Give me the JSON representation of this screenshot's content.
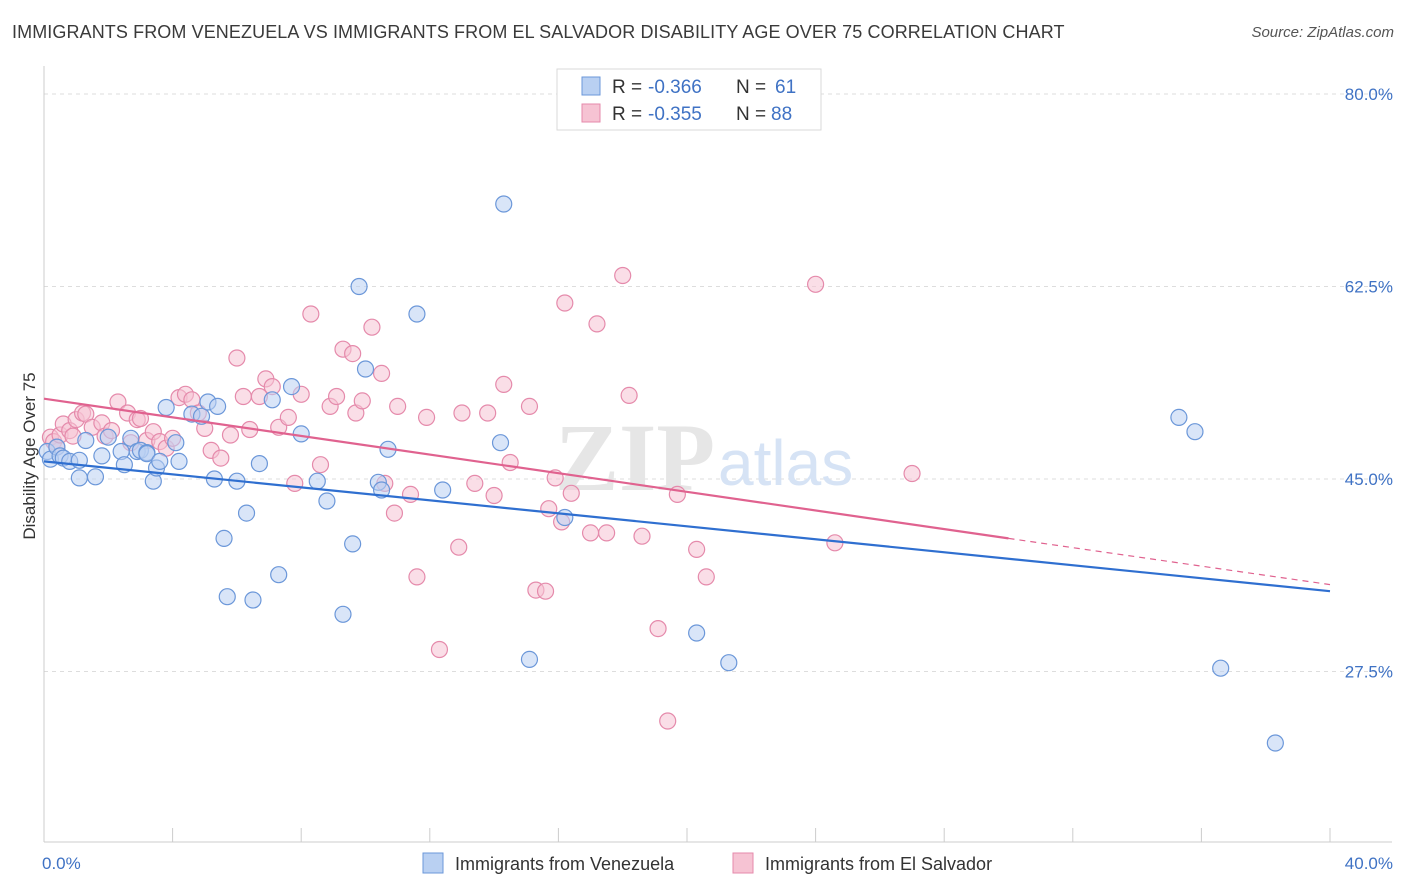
{
  "header": {
    "title": "IMMIGRANTS FROM VENEZUELA VS IMMIGRANTS FROM EL SALVADOR DISABILITY AGE OVER 75 CORRELATION CHART",
    "source": "Source: ZipAtlas.com"
  },
  "watermark": {
    "zip": "ZIP",
    "atlas": "atlas"
  },
  "colors": {
    "venezuela_fill": "#b9d0f2",
    "venezuela_stroke": "#6b97d9",
    "venezuela_line": "#2f6fd0",
    "elsalvador_fill": "#f6c3d3",
    "elsalvador_stroke": "#e58aab",
    "elsalvador_line": "#e0628f",
    "grid": "#dddddd",
    "tick_text": "#3f72c4"
  },
  "legend": {
    "rows": [
      {
        "r_label": "R = ",
        "r_value": "-0.366",
        "n_label": "N = ",
        "n_value": "61"
      },
      {
        "r_label": "R = ",
        "r_value": "-0.355",
        "n_label": "N = ",
        "n_value": "88"
      }
    ]
  },
  "chart_data": {
    "type": "scatter",
    "title": "IMMIGRANTS FROM VENEZUELA VS IMMIGRANTS FROM EL SALVADOR DISABILITY AGE OVER 75 CORRELATION CHART",
    "xlabel": "",
    "ylabel": "Disability Age Over 75",
    "xlim": [
      0,
      40
    ],
    "ylim": [
      12,
      82
    ],
    "x_tick_labels": [
      {
        "value": 0,
        "label": "0.0%"
      },
      {
        "value": 40,
        "label": "40.0%"
      }
    ],
    "y_tick_labels": [
      {
        "value": 80,
        "label": "80.0%"
      },
      {
        "value": 62.5,
        "label": "62.5%"
      },
      {
        "value": 45,
        "label": "45.0%"
      },
      {
        "value": 27.5,
        "label": "27.5%"
      }
    ],
    "grid": "horizontal dashed",
    "legend_position": "top-center",
    "series": [
      {
        "name": "Immigrants from Venezuela",
        "r": -0.366,
        "n": 61,
        "trend": {
          "x0": 0,
          "y0": 46.6,
          "x1": 40,
          "y1": 34.8
        },
        "points": [
          [
            0.1,
            47.5
          ],
          [
            0.2,
            46.8
          ],
          [
            0.4,
            47.9
          ],
          [
            0.5,
            47.1
          ],
          [
            0.6,
            46.9
          ],
          [
            0.8,
            46.6
          ],
          [
            1.1,
            46.7
          ],
          [
            1.1,
            45.1
          ],
          [
            1.3,
            48.5
          ],
          [
            1.6,
            45.2
          ],
          [
            1.8,
            47.1
          ],
          [
            2.0,
            48.8
          ],
          [
            2.4,
            47.5
          ],
          [
            2.5,
            46.3
          ],
          [
            2.7,
            48.7
          ],
          [
            2.9,
            47.5
          ],
          [
            3.0,
            47.6
          ],
          [
            3.2,
            47.4
          ],
          [
            3.2,
            47.3
          ],
          [
            3.4,
            44.8
          ],
          [
            3.5,
            46.0
          ],
          [
            3.6,
            46.6
          ],
          [
            3.8,
            51.5
          ],
          [
            4.1,
            48.3
          ],
          [
            4.2,
            46.6
          ],
          [
            4.6,
            50.9
          ],
          [
            4.9,
            50.7
          ],
          [
            5.1,
            52.0
          ],
          [
            5.3,
            45.0
          ],
          [
            5.4,
            51.6
          ],
          [
            5.6,
            39.6
          ],
          [
            5.7,
            34.3
          ],
          [
            6.0,
            44.8
          ],
          [
            6.3,
            41.9
          ],
          [
            6.5,
            34.0
          ],
          [
            6.7,
            46.4
          ],
          [
            7.1,
            52.2
          ],
          [
            7.3,
            36.3
          ],
          [
            7.7,
            53.4
          ],
          [
            8.0,
            49.1
          ],
          [
            8.5,
            44.8
          ],
          [
            8.8,
            43.0
          ],
          [
            9.3,
            32.7
          ],
          [
            9.6,
            39.1
          ],
          [
            9.8,
            62.5
          ],
          [
            10.0,
            55.0
          ],
          [
            10.4,
            44.7
          ],
          [
            10.5,
            44.0
          ],
          [
            10.7,
            47.7
          ],
          [
            11.6,
            60.0
          ],
          [
            12.4,
            44.0
          ],
          [
            14.3,
            70.0
          ],
          [
            14.2,
            48.3
          ],
          [
            15.1,
            28.6
          ],
          [
            16.2,
            41.5
          ],
          [
            20.3,
            31.0
          ],
          [
            21.3,
            28.3
          ],
          [
            35.3,
            50.6
          ],
          [
            35.8,
            49.3
          ],
          [
            36.6,
            27.8
          ],
          [
            38.3,
            21.0
          ]
        ]
      },
      {
        "name": "Immigrants from El Salvador",
        "r": -0.355,
        "n": 88,
        "trend": {
          "x0": 0,
          "y0": 52.3,
          "x1": 30,
          "y1": 39.6
        },
        "trend_ext": {
          "x0": 30,
          "y0": 39.6,
          "x1": 40,
          "y1": 35.4
        },
        "points": [
          [
            0.2,
            48.8
          ],
          [
            0.3,
            48.4
          ],
          [
            0.4,
            47.9
          ],
          [
            0.5,
            49.0
          ],
          [
            0.6,
            50.0
          ],
          [
            0.8,
            49.4
          ],
          [
            0.9,
            48.9
          ],
          [
            1.0,
            50.4
          ],
          [
            1.2,
            51.0
          ],
          [
            1.3,
            50.9
          ],
          [
            1.5,
            49.7
          ],
          [
            1.8,
            50.1
          ],
          [
            1.9,
            48.9
          ],
          [
            2.1,
            49.4
          ],
          [
            2.3,
            52.0
          ],
          [
            2.6,
            51.0
          ],
          [
            2.7,
            48.3
          ],
          [
            2.9,
            50.4
          ],
          [
            3.0,
            50.5
          ],
          [
            3.2,
            48.5
          ],
          [
            3.4,
            49.3
          ],
          [
            3.6,
            48.4
          ],
          [
            3.8,
            47.8
          ],
          [
            4.0,
            48.7
          ],
          [
            4.2,
            52.4
          ],
          [
            4.4,
            52.7
          ],
          [
            4.6,
            52.2
          ],
          [
            4.8,
            51.0
          ],
          [
            5.0,
            49.6
          ],
          [
            5.2,
            47.6
          ],
          [
            5.5,
            46.9
          ],
          [
            5.8,
            49.0
          ],
          [
            6.0,
            56.0
          ],
          [
            6.2,
            52.5
          ],
          [
            6.4,
            49.5
          ],
          [
            6.7,
            52.5
          ],
          [
            6.9,
            54.1
          ],
          [
            7.1,
            53.4
          ],
          [
            7.3,
            49.7
          ],
          [
            7.6,
            50.6
          ],
          [
            7.8,
            44.6
          ],
          [
            8.0,
            52.7
          ],
          [
            8.3,
            60.0
          ],
          [
            8.6,
            46.3
          ],
          [
            8.9,
            51.6
          ],
          [
            9.1,
            52.5
          ],
          [
            9.3,
            56.8
          ],
          [
            9.6,
            56.4
          ],
          [
            9.7,
            51.0
          ],
          [
            9.9,
            52.1
          ],
          [
            10.2,
            58.8
          ],
          [
            10.5,
            54.6
          ],
          [
            10.6,
            44.6
          ],
          [
            10.9,
            41.9
          ],
          [
            11.0,
            51.6
          ],
          [
            11.4,
            43.6
          ],
          [
            11.6,
            36.1
          ],
          [
            11.9,
            50.6
          ],
          [
            12.3,
            29.5
          ],
          [
            12.9,
            38.8
          ],
          [
            13.0,
            51.0
          ],
          [
            13.4,
            44.6
          ],
          [
            13.8,
            51.0
          ],
          [
            14.0,
            43.5
          ],
          [
            14.3,
            53.6
          ],
          [
            14.5,
            46.5
          ],
          [
            15.1,
            51.6
          ],
          [
            15.3,
            34.9
          ],
          [
            15.6,
            34.8
          ],
          [
            15.7,
            42.3
          ],
          [
            15.9,
            45.1
          ],
          [
            16.1,
            41.1
          ],
          [
            16.2,
            61.0
          ],
          [
            16.4,
            43.7
          ],
          [
            17.0,
            40.1
          ],
          [
            17.2,
            59.1
          ],
          [
            17.5,
            40.1
          ],
          [
            18.0,
            63.5
          ],
          [
            18.2,
            52.6
          ],
          [
            18.6,
            39.8
          ],
          [
            19.1,
            31.4
          ],
          [
            19.4,
            23.0
          ],
          [
            19.7,
            43.6
          ],
          [
            20.3,
            38.6
          ],
          [
            20.6,
            36.1
          ],
          [
            24.0,
            62.7
          ],
          [
            24.6,
            39.2
          ],
          [
            27.0,
            45.5
          ]
        ]
      }
    ]
  },
  "bottom_legend": {
    "venezuela": "Immigrants from Venezuela",
    "elsalvador": "Immigrants from El Salvador"
  }
}
